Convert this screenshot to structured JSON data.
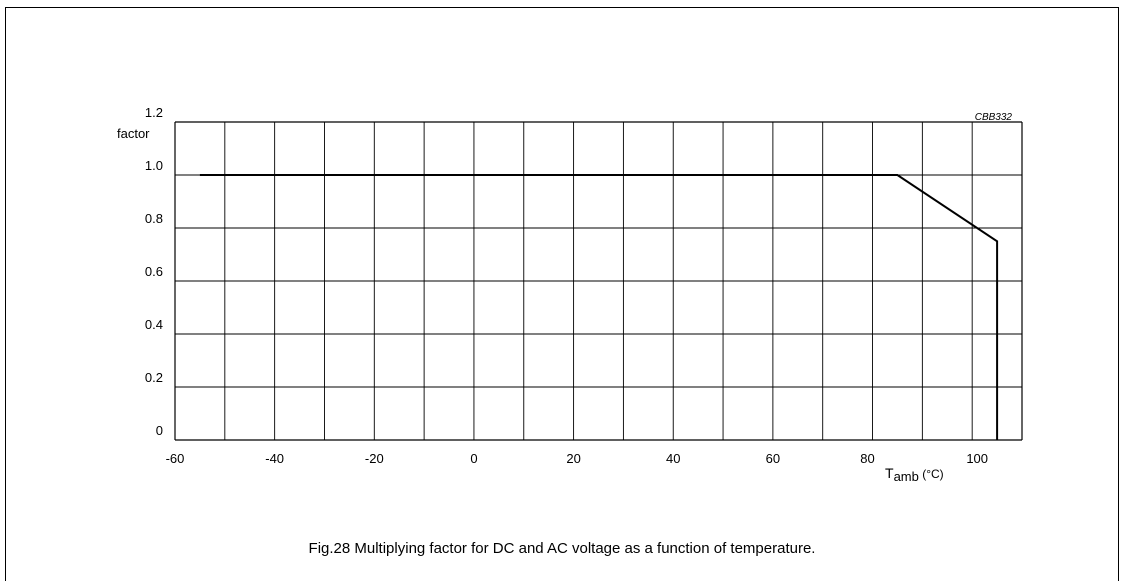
{
  "chart_data": {
    "type": "line",
    "code": "CBB332",
    "ylabel": "factor",
    "xlabel": {
      "main": "T",
      "sub": "amb",
      "unit": " (°C)"
    },
    "xlim": [
      -60,
      110
    ],
    "ylim": [
      0,
      1.2
    ],
    "x_ticks": [
      -60,
      -40,
      -20,
      0,
      20,
      40,
      60,
      80,
      100
    ],
    "y_ticks": [
      0,
      0.2,
      0.4,
      0.6,
      0.8,
      1.0,
      1.2
    ],
    "x_tick_labels": [
      "-60",
      "-40",
      "-20",
      "0",
      "20",
      "40",
      "60",
      "80",
      "100"
    ],
    "y_tick_labels": [
      "0",
      "0.2",
      "0.4",
      "0.6",
      "0.8",
      "1.0",
      "1.2"
    ],
    "grid": true,
    "series": [
      {
        "x": [
          -55,
          85,
          105,
          105
        ],
        "y": [
          1.0,
          1.0,
          0.75,
          0
        ]
      }
    ]
  },
  "caption": "Fig.28  Multiplying factor for DC and AC voltage as a function of temperature."
}
